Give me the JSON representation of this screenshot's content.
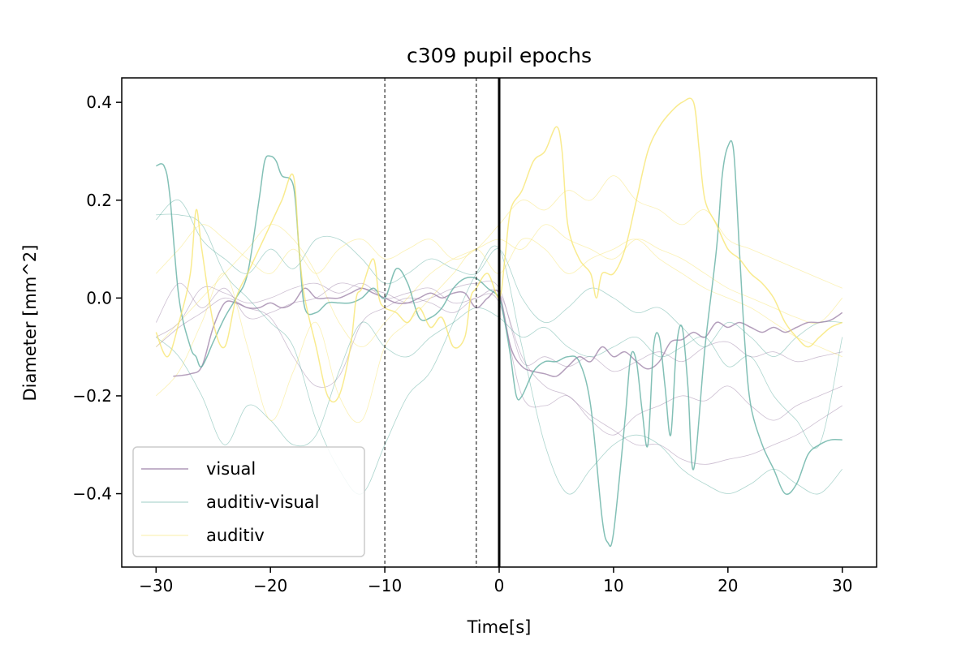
{
  "chart_data": {
    "type": "line",
    "title": "c309 pupil epochs",
    "xlabel": "Time[s]",
    "ylabel": "Diameter [mm^2]",
    "xlim": [
      -33,
      33
    ],
    "ylim": [
      -0.55,
      0.45
    ],
    "xticks": [
      -30,
      -20,
      -10,
      0,
      10,
      20,
      30
    ],
    "xtick_labels": [
      "−30",
      "−20",
      "−10",
      "0",
      "10",
      "20",
      "30"
    ],
    "yticks": [
      -0.4,
      -0.2,
      0.0,
      0.2,
      0.4
    ],
    "ytick_labels": [
      "−0.4",
      "−0.2",
      "0.0",
      "0.2",
      "0.4"
    ],
    "grid": false,
    "legend_position": "lower-left",
    "vlines": [
      {
        "x": -10,
        "style": "dashed"
      },
      {
        "x": -2,
        "style": "dashed"
      },
      {
        "x": 0,
        "style": "solid"
      }
    ],
    "series": [
      {
        "name": "visual",
        "color": "#9b7fa6",
        "role": "mean",
        "x": [
          -28.5,
          -27,
          -26,
          -25,
          -24,
          -23,
          -22,
          -21,
          -20,
          -19,
          -18,
          -17,
          -16,
          -15,
          -14,
          -13,
          -12,
          -11,
          -10,
          -9,
          -8,
          -7,
          -6,
          -5,
          -4,
          -3,
          -2,
          -1,
          0,
          1,
          2,
          3,
          4,
          5,
          6,
          7,
          8,
          9,
          10,
          11,
          12,
          13,
          14,
          15,
          16,
          17,
          18,
          19,
          20,
          21,
          22,
          23,
          24,
          25,
          26,
          27,
          28,
          29,
          30
        ],
        "values": [
          -0.16,
          -0.155,
          -0.14,
          -0.06,
          -0.01,
          -0.01,
          -0.02,
          -0.02,
          -0.01,
          -0.02,
          -0.01,
          0.02,
          0.0,
          0.0,
          0.0,
          0.01,
          0.02,
          0.01,
          0.0,
          -0.01,
          -0.01,
          0.0,
          0.01,
          0.0,
          0.01,
          0.01,
          -0.02,
          0.0,
          0.01,
          -0.1,
          -0.14,
          -0.15,
          -0.155,
          -0.16,
          -0.14,
          -0.12,
          -0.13,
          -0.1,
          -0.12,
          -0.11,
          -0.13,
          -0.145,
          -0.13,
          -0.09,
          -0.085,
          -0.07,
          -0.08,
          -0.05,
          -0.06,
          -0.05,
          -0.06,
          -0.07,
          -0.06,
          -0.07,
          -0.06,
          -0.05,
          -0.05,
          -0.045,
          -0.03
        ]
      },
      {
        "name": "",
        "color": "#9b7fa6",
        "role": "epoch",
        "x": [
          -30,
          -28,
          -26,
          -24,
          -22,
          -20,
          -18,
          -16,
          -14,
          -12,
          -10,
          -8,
          -6,
          -4,
          -2,
          0,
          2,
          4,
          6,
          8,
          10,
          12,
          14,
          16,
          18,
          20,
          22,
          24,
          26,
          28,
          30
        ],
        "values": [
          -0.05,
          0.03,
          -0.02,
          0.02,
          -0.04,
          -0.03,
          -0.01,
          0.0,
          0.03,
          0.02,
          0.01,
          -0.01,
          0.0,
          0.02,
          0.03,
          0.02,
          -0.13,
          -0.12,
          -0.14,
          -0.12,
          -0.15,
          -0.13,
          -0.11,
          -0.13,
          -0.1,
          -0.09,
          -0.12,
          -0.11,
          -0.13,
          -0.12,
          -0.11
        ]
      },
      {
        "name": "",
        "color": "#9b7fa6",
        "role": "epoch",
        "x": [
          -30,
          -28,
          -26,
          -24,
          -22,
          -20,
          -18,
          -16,
          -14,
          -12,
          -10,
          -8,
          -6,
          -4,
          -2,
          0,
          2,
          4,
          6,
          8,
          10,
          12,
          14,
          16,
          18,
          20,
          22,
          24,
          26,
          28,
          30
        ],
        "values": [
          -0.1,
          -0.06,
          -0.03,
          0.0,
          -0.02,
          -0.04,
          -0.12,
          -0.18,
          -0.16,
          -0.05,
          -0.02,
          0.0,
          -0.01,
          -0.03,
          0.0,
          -0.01,
          -0.2,
          -0.22,
          -0.2,
          -0.25,
          -0.28,
          -0.24,
          -0.22,
          -0.2,
          -0.21,
          -0.18,
          -0.22,
          -0.25,
          -0.22,
          -0.2,
          -0.18
        ]
      },
      {
        "name": "",
        "color": "#9b7fa6",
        "role": "epoch",
        "x": [
          -30,
          -28,
          -26,
          -24,
          -22,
          -20,
          -18,
          -16,
          -14,
          -12,
          -10,
          -8,
          -6,
          -4,
          -2,
          0,
          2,
          4,
          6,
          8,
          10,
          12,
          14,
          16,
          18,
          20,
          22,
          24,
          26,
          28,
          30
        ],
        "values": [
          -0.08,
          -0.05,
          0.02,
          0.01,
          -0.01,
          0.0,
          0.02,
          0.03,
          0.01,
          0.03,
          0.0,
          0.01,
          0.02,
          -0.01,
          0.0,
          0.01,
          -0.12,
          -0.18,
          -0.2,
          -0.24,
          -0.27,
          -0.3,
          -0.3,
          -0.33,
          -0.34,
          -0.33,
          -0.32,
          -0.3,
          -0.28,
          -0.25,
          -0.22
        ]
      },
      {
        "name": "auditiv-visual",
        "color": "#5aab9e",
        "role": "mean",
        "x": [
          -30,
          -29.3,
          -28.8,
          -28,
          -27,
          -26.5,
          -26,
          -25,
          -24,
          -23,
          -22,
          -21,
          -20.5,
          -20,
          -19.5,
          -19,
          -18,
          -17.5,
          -17,
          -16,
          -15,
          -14,
          -13,
          -12,
          -11,
          -10,
          -9,
          -8,
          -7,
          -6,
          -5,
          -4,
          -3,
          -2,
          -1,
          0,
          0.5,
          1,
          1.5,
          2,
          3,
          4,
          5,
          6,
          7,
          8,
          9,
          9.5,
          10,
          11,
          11.5,
          12,
          12.5,
          13,
          13.5,
          14,
          14.5,
          15,
          15.5,
          16,
          16.5,
          17,
          18,
          19,
          19.5,
          20,
          20.5,
          21,
          21.5,
          22,
          23,
          24,
          25,
          26,
          27,
          28,
          29,
          30
        ],
        "values": [
          0.27,
          0.27,
          0.21,
          0.0,
          -0.1,
          -0.12,
          -0.14,
          -0.09,
          -0.04,
          0.0,
          0.05,
          0.2,
          0.28,
          0.29,
          0.28,
          0.25,
          0.23,
          0.1,
          -0.02,
          -0.03,
          -0.01,
          -0.01,
          -0.01,
          0.0,
          0.02,
          0.0,
          0.06,
          0.03,
          -0.04,
          -0.04,
          -0.02,
          0.02,
          0.04,
          0.04,
          0.02,
          0.0,
          -0.05,
          -0.12,
          -0.2,
          -0.2,
          -0.15,
          -0.13,
          -0.13,
          -0.12,
          -0.13,
          -0.22,
          -0.45,
          -0.5,
          -0.48,
          -0.25,
          -0.12,
          -0.13,
          -0.23,
          -0.3,
          -0.1,
          -0.08,
          -0.18,
          -0.28,
          -0.1,
          -0.06,
          -0.18,
          -0.35,
          -0.1,
          0.1,
          0.25,
          0.31,
          0.3,
          0.1,
          -0.1,
          -0.22,
          -0.3,
          -0.35,
          -0.4,
          -0.38,
          -0.32,
          -0.3,
          -0.29,
          -0.29
        ]
      },
      {
        "name": "",
        "color": "#5aab9e",
        "role": "epoch",
        "x": [
          -30,
          -28,
          -26,
          -24,
          -22,
          -20,
          -18,
          -16,
          -14,
          -12,
          -10,
          -8,
          -6,
          -4,
          -2,
          0,
          2,
          4,
          6,
          8,
          10,
          12,
          14,
          16,
          18,
          20,
          22,
          24,
          26,
          28,
          30
        ],
        "values": [
          0.17,
          0.17,
          0.15,
          0.05,
          0.0,
          -0.05,
          -0.1,
          -0.25,
          -0.35,
          -0.4,
          -0.3,
          -0.2,
          -0.15,
          -0.05,
          0.05,
          0.1,
          -0.1,
          -0.3,
          -0.4,
          -0.35,
          -0.3,
          -0.28,
          -0.3,
          -0.35,
          -0.38,
          -0.4,
          -0.38,
          -0.35,
          -0.38,
          -0.4,
          -0.35
        ]
      },
      {
        "name": "",
        "color": "#5aab9e",
        "role": "epoch",
        "x": [
          -30,
          -28,
          -26,
          -24,
          -22,
          -20,
          -18,
          -16,
          -14,
          -12,
          -10,
          -8,
          -6,
          -4,
          -2,
          0,
          2,
          4,
          6,
          8,
          10,
          12,
          14,
          16,
          18,
          20,
          22,
          24,
          26,
          28,
          30
        ],
        "values": [
          -0.08,
          -0.12,
          -0.2,
          -0.3,
          -0.22,
          -0.25,
          -0.3,
          -0.28,
          -0.15,
          -0.05,
          -0.1,
          -0.12,
          -0.08,
          -0.05,
          -0.02,
          -0.04,
          -0.08,
          -0.06,
          -0.1,
          -0.12,
          -0.1,
          -0.08,
          -0.12,
          -0.1,
          -0.08,
          -0.14,
          -0.12,
          -0.2,
          -0.25,
          -0.3,
          -0.08
        ]
      },
      {
        "name": "",
        "color": "#5aab9e",
        "role": "epoch",
        "x": [
          -30,
          -28,
          -26,
          -24,
          -22,
          -20,
          -18,
          -16,
          -14,
          -12,
          -10,
          -8,
          -6,
          -4,
          -2,
          0,
          2,
          4,
          6,
          8,
          10,
          12,
          14,
          16,
          18,
          20,
          22,
          24,
          26,
          28,
          30
        ],
        "values": [
          0.16,
          0.2,
          0.12,
          0.08,
          0.05,
          0.1,
          0.06,
          0.12,
          0.12,
          0.08,
          0.03,
          0.05,
          0.08,
          0.06,
          0.05,
          0.1,
          0.0,
          -0.05,
          -0.02,
          0.02,
          0.0,
          -0.03,
          -0.02,
          -0.06,
          -0.1,
          -0.05,
          -0.08,
          -0.12,
          -0.08,
          -0.05,
          -0.05
        ]
      },
      {
        "name": "auditiv",
        "color": "#f7e46a",
        "role": "mean",
        "x": [
          -30,
          -29,
          -28,
          -27,
          -26.5,
          -26,
          -25,
          -24,
          -23,
          -22,
          -21,
          -20,
          -19,
          -18,
          -17.5,
          -17,
          -16,
          -15,
          -14,
          -13,
          -12.5,
          -12,
          -11,
          -10.5,
          -10,
          -9,
          -8,
          -7,
          -6,
          -5,
          -4,
          -3,
          -2.5,
          -2,
          -1,
          0,
          0.5,
          1,
          2,
          3,
          4,
          5,
          5.5,
          6,
          7,
          8,
          8.5,
          9,
          10,
          11,
          12,
          13,
          14,
          15,
          16,
          17,
          17.5,
          18,
          19,
          20,
          21,
          22,
          23,
          24,
          25,
          26,
          27,
          28,
          29,
          30
        ],
        "values": [
          -0.07,
          -0.12,
          -0.05,
          0.05,
          0.18,
          0.1,
          -0.05,
          -0.1,
          0.0,
          0.05,
          0.1,
          0.15,
          0.2,
          0.25,
          0.1,
          0.0,
          -0.1,
          -0.2,
          -0.2,
          -0.1,
          0.0,
          0.02,
          0.08,
          0.0,
          -0.02,
          -0.03,
          -0.05,
          -0.02,
          -0.06,
          -0.04,
          -0.1,
          -0.08,
          0.0,
          0.02,
          0.05,
          0.0,
          0.08,
          0.18,
          0.22,
          0.28,
          0.3,
          0.35,
          0.3,
          0.15,
          0.08,
          0.05,
          0.0,
          0.05,
          0.05,
          0.1,
          0.2,
          0.3,
          0.35,
          0.38,
          0.4,
          0.4,
          0.3,
          0.2,
          0.15,
          0.1,
          0.08,
          0.05,
          0.03,
          0.0,
          -0.05,
          -0.08,
          -0.1,
          -0.08,
          -0.06,
          -0.05
        ]
      },
      {
        "name": "",
        "color": "#f7e46a",
        "role": "epoch",
        "x": [
          -30,
          -28,
          -26,
          -24,
          -22,
          -20,
          -18,
          -16,
          -14,
          -12,
          -10,
          -8,
          -6,
          -4,
          -2,
          0,
          2,
          4,
          6,
          8,
          10,
          12,
          14,
          16,
          18,
          20,
          22,
          24,
          26,
          28,
          30
        ],
        "values": [
          0.05,
          0.1,
          0.15,
          0.12,
          0.08,
          0.05,
          0.1,
          0.05,
          0.1,
          0.12,
          0.08,
          0.1,
          0.12,
          0.08,
          0.1,
          0.15,
          0.2,
          0.18,
          0.22,
          0.2,
          0.25,
          0.2,
          0.18,
          0.15,
          0.18,
          0.12,
          0.1,
          0.08,
          0.06,
          0.04,
          0.02
        ]
      },
      {
        "name": "",
        "color": "#f7e46a",
        "role": "epoch",
        "x": [
          -30,
          -28,
          -26,
          -24,
          -22,
          -20,
          -18,
          -16,
          -14,
          -12,
          -10,
          -8,
          -6,
          -4,
          -2,
          0,
          2,
          4,
          6,
          8,
          10,
          12,
          14,
          16,
          18,
          20,
          22,
          24,
          26,
          28,
          30
        ],
        "values": [
          -0.2,
          -0.15,
          -0.05,
          0.05,
          -0.1,
          -0.25,
          -0.15,
          -0.05,
          -0.2,
          -0.25,
          -0.1,
          -0.05,
          0.0,
          0.05,
          0.1,
          0.05,
          0.12,
          0.1,
          0.05,
          0.08,
          0.1,
          0.12,
          0.08,
          0.05,
          0.02,
          0.0,
          -0.02,
          -0.05,
          -0.08,
          -0.1,
          -0.12
        ]
      },
      {
        "name": "",
        "color": "#f7e46a",
        "role": "epoch",
        "x": [
          -30,
          -28,
          -26,
          -24,
          -22,
          -20,
          -18,
          -16,
          -14,
          -12,
          -10,
          -8,
          -6,
          -4,
          -2,
          0,
          2,
          4,
          6,
          8,
          10,
          12,
          14,
          16,
          18,
          20,
          22,
          24,
          26,
          28,
          30
        ],
        "values": [
          -0.1,
          -0.05,
          0.0,
          0.05,
          0.1,
          0.15,
          0.12,
          0.05,
          -0.05,
          -0.1,
          -0.05,
          0.0,
          0.05,
          0.08,
          0.1,
          0.12,
          0.1,
          0.15,
          0.12,
          0.1,
          0.08,
          0.12,
          0.1,
          0.08,
          0.05,
          0.02,
          0.0,
          -0.02,
          -0.04,
          -0.05,
          0.0
        ]
      }
    ]
  }
}
